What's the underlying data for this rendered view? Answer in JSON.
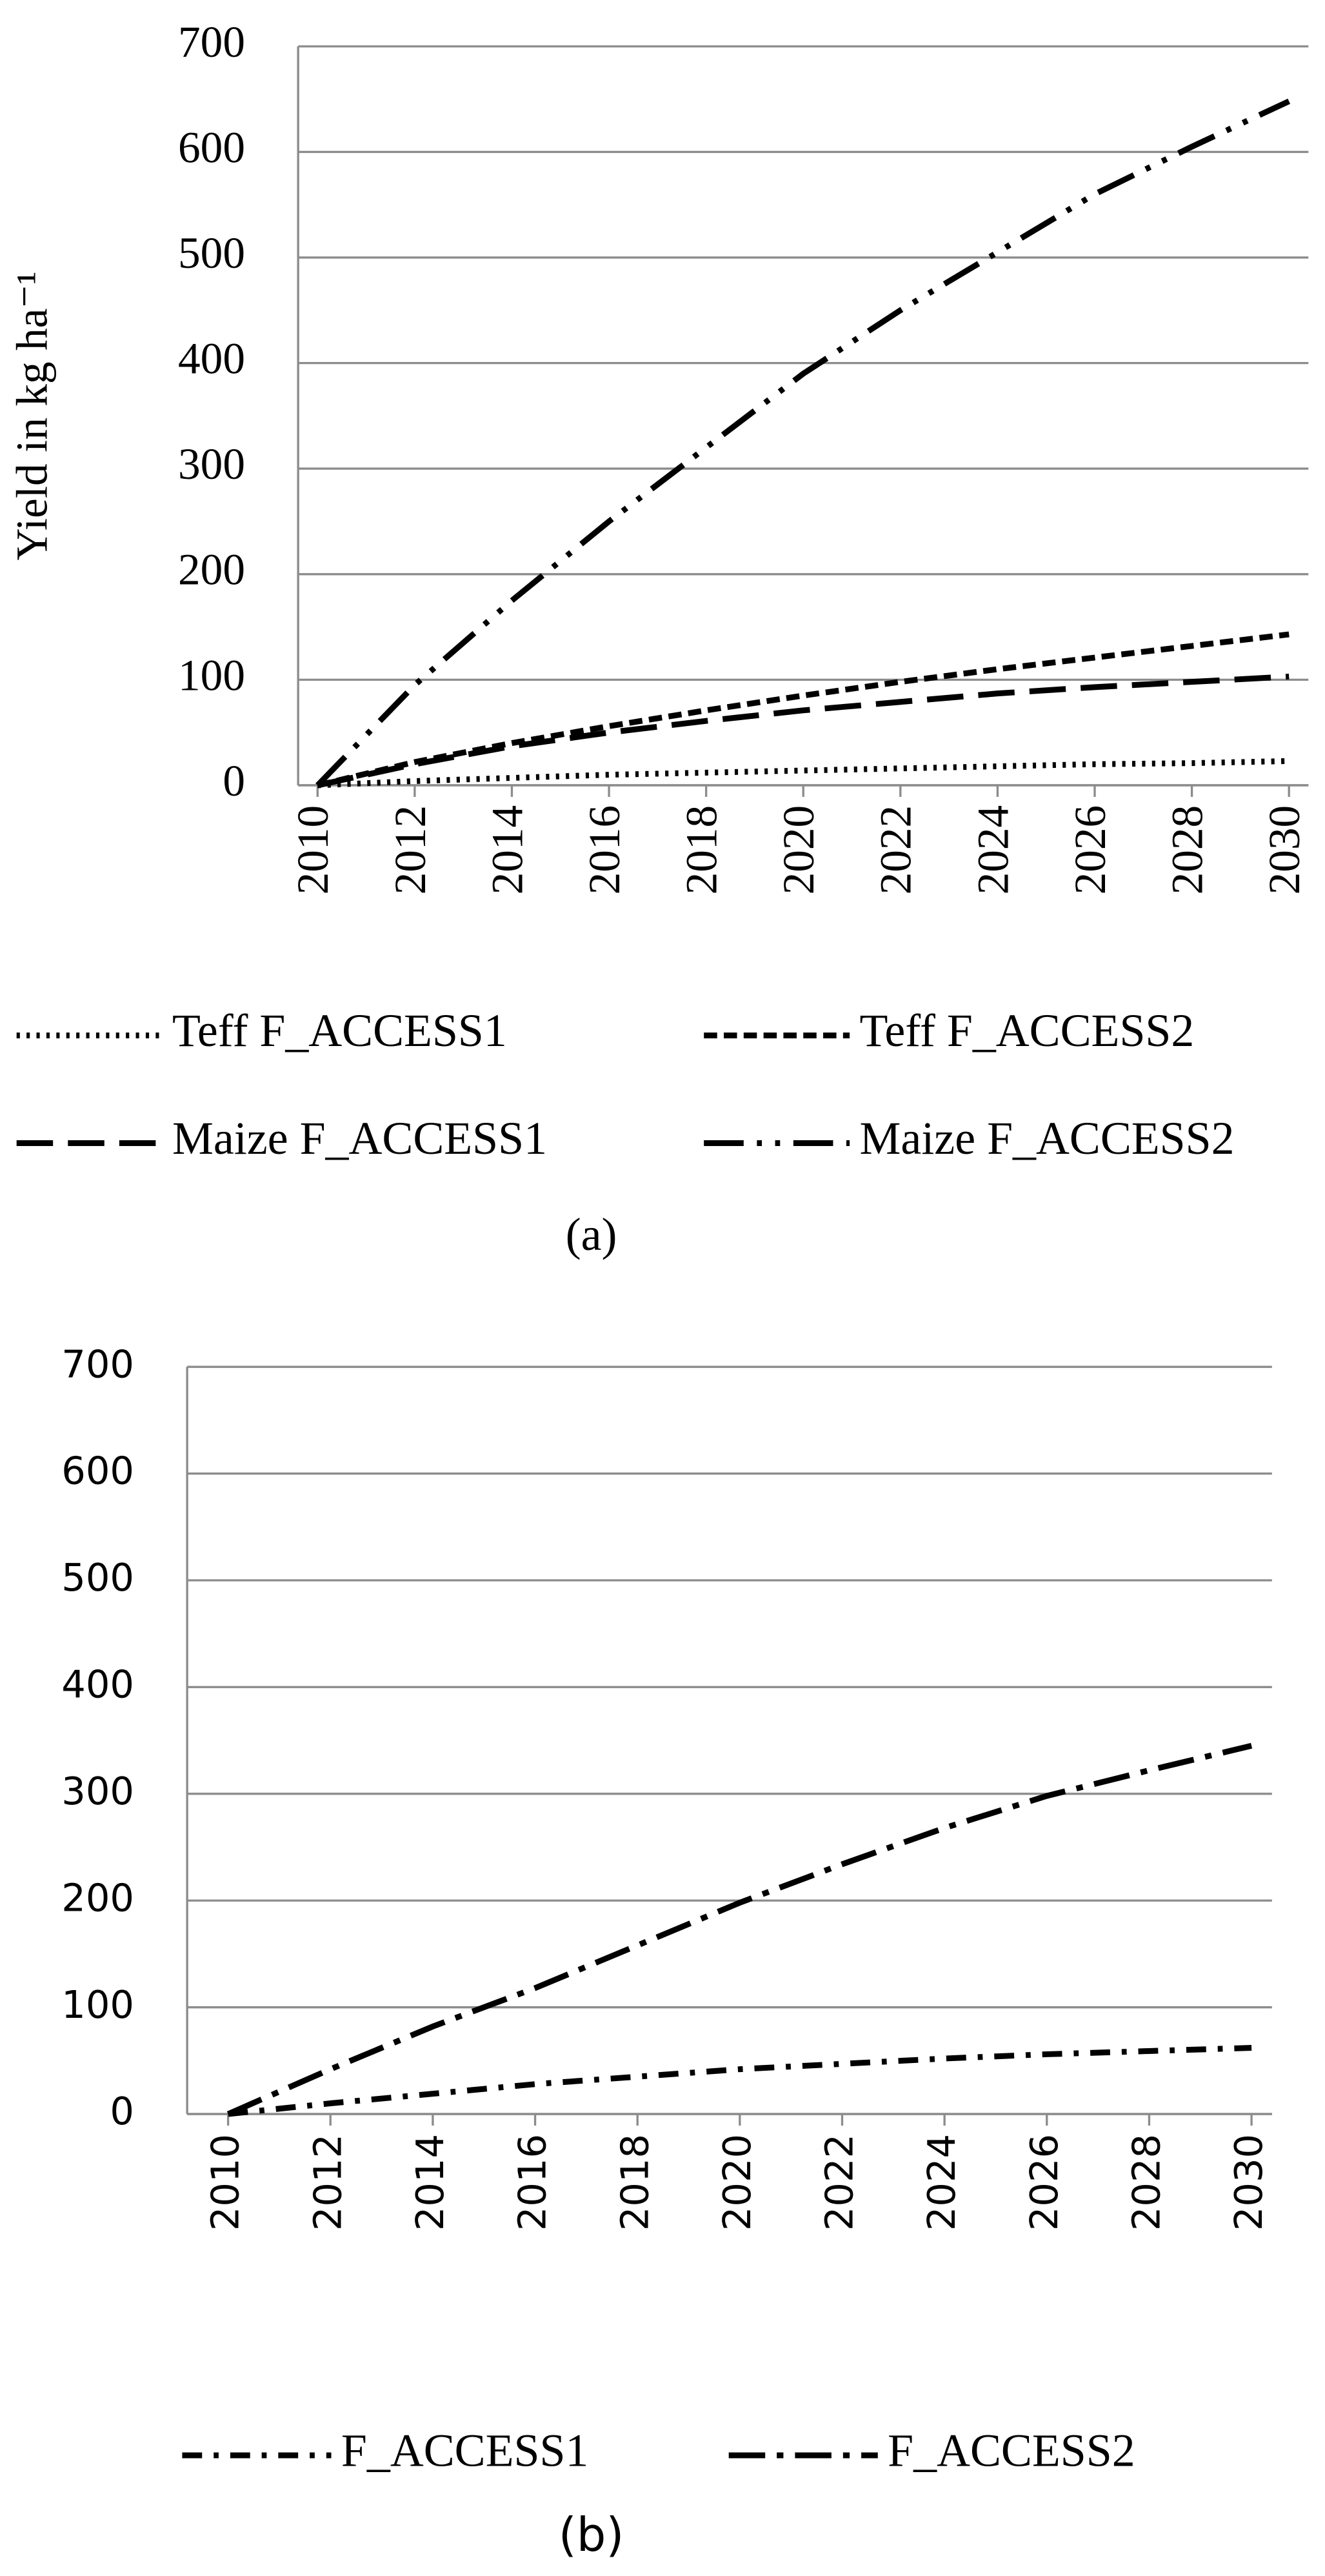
{
  "chart_data": [
    {
      "type": "line",
      "y_label": "Yield  in kg ha⁻¹",
      "caption": "(a)",
      "x": [
        2010,
        2012,
        2014,
        2016,
        2018,
        2020,
        2022,
        2024,
        2026,
        2028,
        2030
      ],
      "xlim": [
        2009.6,
        2030.4
      ],
      "xticks": [
        2010,
        2012,
        2014,
        2016,
        2018,
        2020,
        2022,
        2024,
        2026,
        2028,
        2030
      ],
      "ylim": [
        0,
        700
      ],
      "yticks": [
        0,
        100,
        200,
        300,
        400,
        500,
        600,
        700
      ],
      "grid": true,
      "series": [
        {
          "name": "Teff F_ACCESS1",
          "color": "#000000",
          "dash": "2,4",
          "values": [
            0,
            4,
            7,
            10,
            12,
            14,
            16,
            18,
            20,
            21,
            23
          ]
        },
        {
          "name": "Teff F_ACCESS2",
          "color": "#000000",
          "dash": "8,4",
          "values": [
            0,
            22,
            40,
            56,
            71,
            85,
            98,
            110,
            121,
            132,
            143
          ]
        },
        {
          "name": "Maize F_ACCESS1",
          "color": "#000000",
          "dash": "22,9",
          "values": [
            0,
            20,
            37,
            50,
            61,
            71,
            79,
            87,
            93,
            98,
            103
          ]
        },
        {
          "name": "Maize F_ACCESS2",
          "color": "#000000",
          "dash": "24,8,3,8,3,8",
          "values": [
            0,
            95,
            175,
            250,
            320,
            390,
            450,
            505,
            560,
            605,
            648
          ]
        }
      ]
    },
    {
      "type": "line",
      "caption": "(b)",
      "x": [
        2010,
        2012,
        2014,
        2016,
        2018,
        2020,
        2022,
        2024,
        2026,
        2028,
        2030
      ],
      "xlim": [
        2009.2,
        2030.4
      ],
      "xticks": [
        2010,
        2012,
        2014,
        2016,
        2018,
        2020,
        2022,
        2024,
        2026,
        2028,
        2030
      ],
      "ylim": [
        0,
        700
      ],
      "yticks": [
        0,
        100,
        200,
        300,
        400,
        500,
        600,
        700
      ],
      "grid": true,
      "series": [
        {
          "name": "F_ACCESS1",
          "color": "#000000",
          "dash": "12,7,3,7",
          "values": [
            0,
            10,
            19,
            28,
            35,
            42,
            47,
            52,
            56,
            59,
            62
          ]
        },
        {
          "name": "F_ACCESS2",
          "color": "#000000",
          "dash": "22,7,4,7",
          "values": [
            0,
            42,
            82,
            118,
            158,
            198,
            234,
            268,
            298,
            322,
            345
          ]
        }
      ]
    }
  ]
}
